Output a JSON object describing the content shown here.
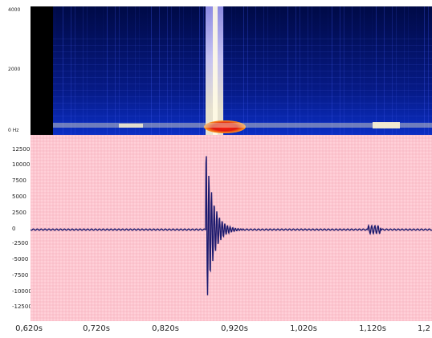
{
  "spectrogram": {
    "y_ticks": [
      "4000",
      "2000",
      "0 Hz"
    ],
    "palette": {
      "background": "#000a3c",
      "low": "#1024c8",
      "mid": "#b0a8ff",
      "high": "#fff6d2",
      "peak": "#e01a10"
    }
  },
  "waveform": {
    "background": "#ffd0d8",
    "grid_color": "#f4a9b6",
    "trace_color": "#1c1a6e",
    "y_ticks": [
      "12500",
      "10000",
      "7500",
      "5000",
      "2500",
      "0",
      "-2500",
      "-5000",
      "-7500",
      "-10000",
      "-12500"
    ]
  },
  "x_axis": {
    "ticks": [
      "0,620s",
      "0,720s",
      "0,820s",
      "0,920s",
      "1,020s",
      "1,120s",
      "1,2"
    ]
  }
}
